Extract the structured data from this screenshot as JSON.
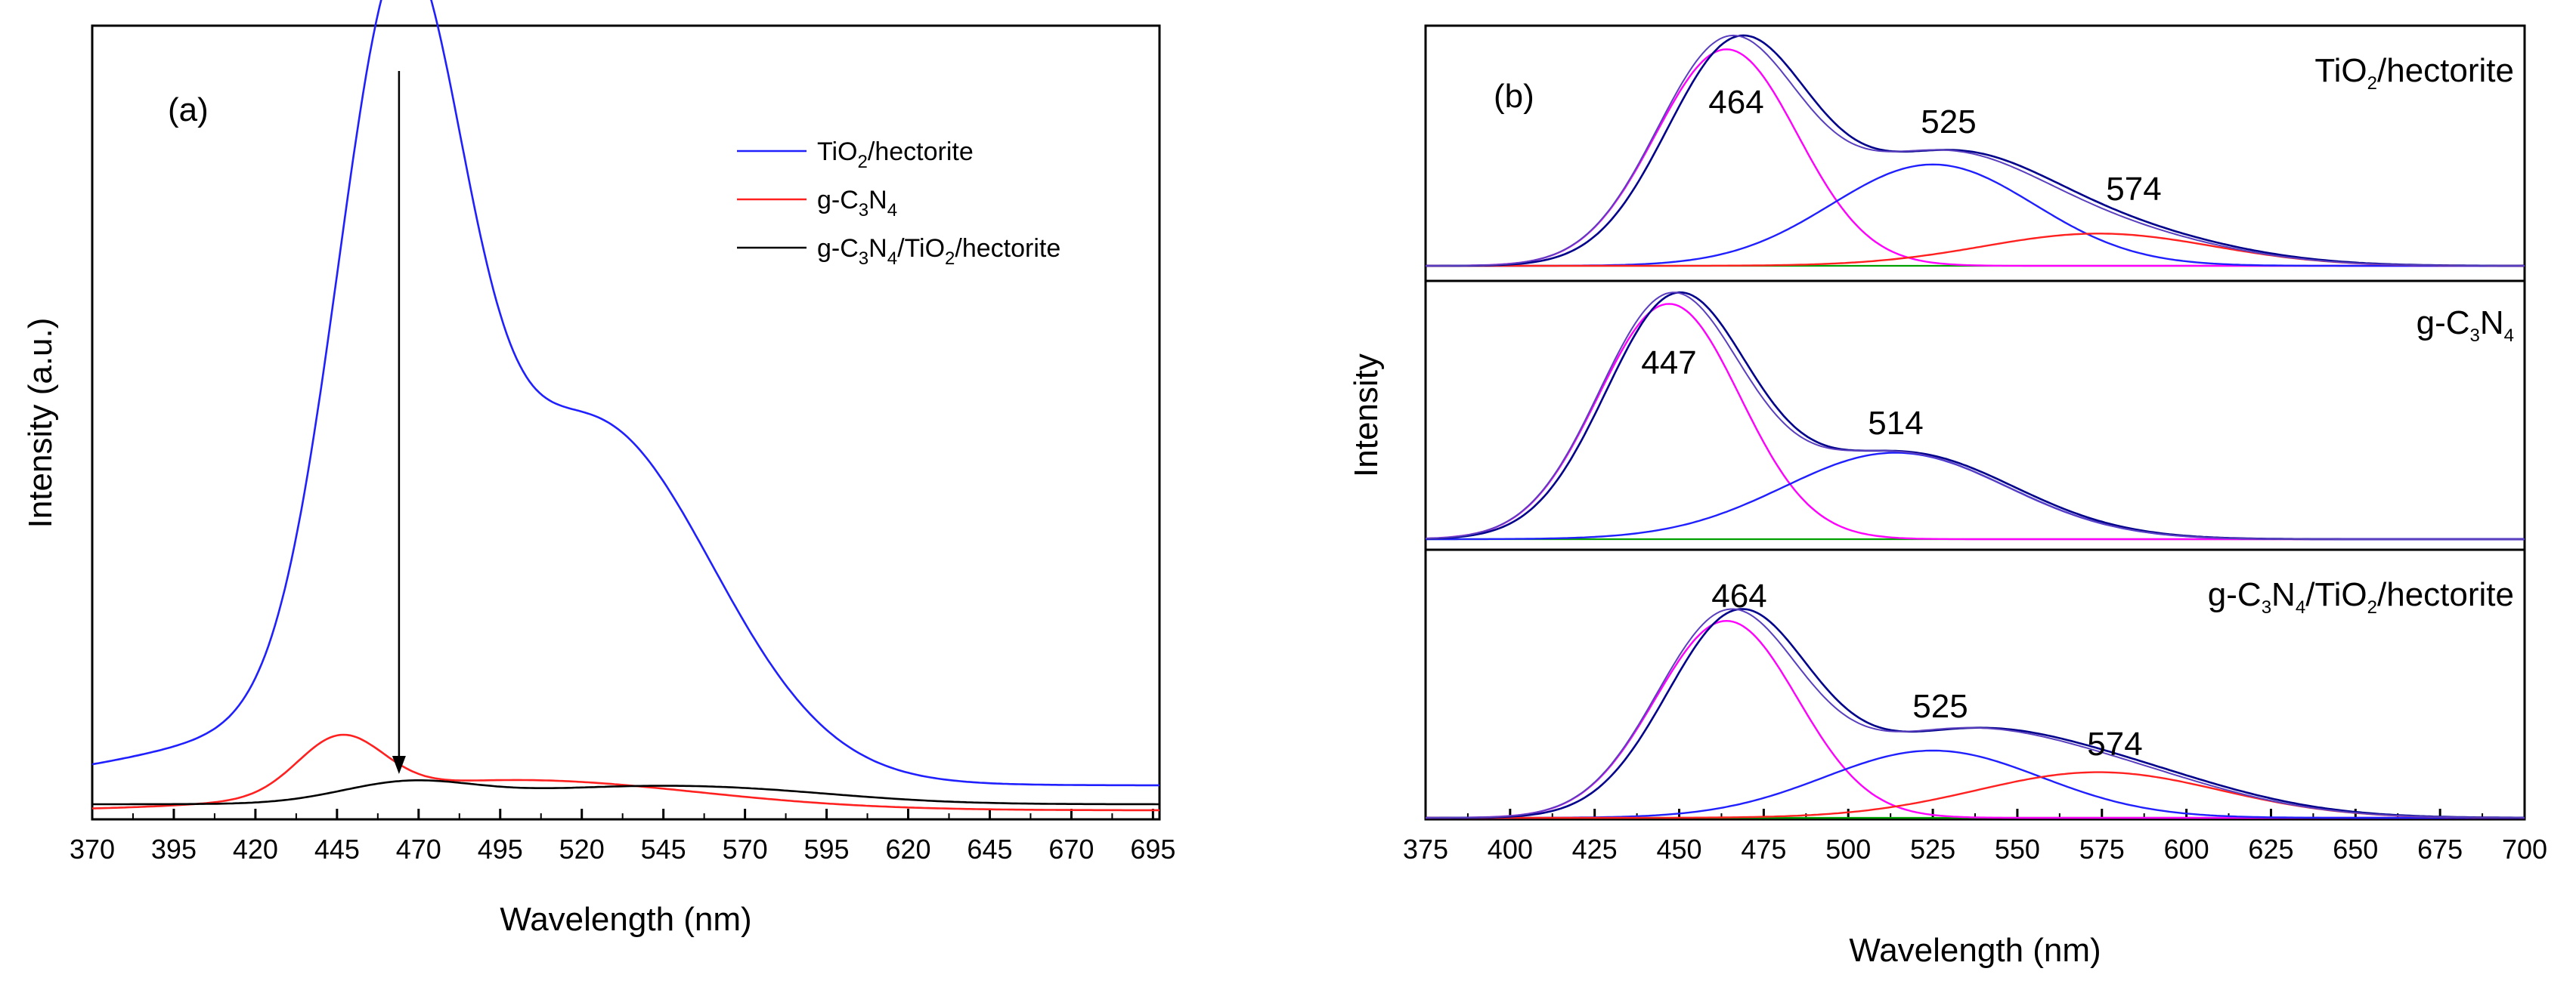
{
  "chart_data": [
    {
      "type": "line",
      "panel": "(a)",
      "xlabel": "Wavelength (nm)",
      "ylabel": "Intensity (a.u.)",
      "xlim": [
        370,
        697
      ],
      "ylim": [
        0,
        1.05
      ],
      "xticks": [
        370,
        395,
        420,
        445,
        470,
        495,
        520,
        545,
        570,
        595,
        620,
        645,
        670,
        695
      ],
      "legend_position": "top-right",
      "series": [
        {
          "key": "tio2",
          "name": "TiO2/hectorite",
          "label_parts": [
            "TiO",
            "2",
            "/hectorite"
          ],
          "color": "#2020ff",
          "components": [
            {
              "center": 464,
              "height": 0.9,
              "sigma": 19
            },
            {
              "center": 525,
              "height": 0.42,
              "sigma": 36
            },
            {
              "center": 466,
              "height": 0.1,
              "sigma": 60
            }
          ],
          "baseline": 0.045
        },
        {
          "key": "gcn",
          "name": "g-C3N4",
          "label_parts": [
            "g-C",
            "3",
            "N",
            "4"
          ],
          "color": "#ff2020",
          "components": [
            {
              "center": 446,
              "height": 0.075,
              "sigma": 13
            },
            {
              "center": 500,
              "height": 0.04,
              "sigma": 55
            }
          ],
          "baseline": 0.012
        },
        {
          "key": "comp",
          "name": "g-C3N4/TiO2/hectorite",
          "label_parts": [
            "g-C",
            "3",
            "N",
            "4",
            "/TiO",
            "2",
            "/hectorite"
          ],
          "color": "#000000",
          "components": [
            {
              "center": 466,
              "height": 0.025,
              "sigma": 20
            },
            {
              "center": 525,
              "height": 0.018,
              "sigma": 40
            },
            {
              "center": 574,
              "height": 0.012,
              "sigma": 35
            }
          ],
          "baseline": 0.02
        }
      ],
      "arrow": {
        "x": 464,
        "from_y": 0.99,
        "to_y": 0.06
      }
    },
    {
      "type": "line",
      "panel": "(b)",
      "xlabel": "Wavelength (nm)",
      "ylabel": "Intensity",
      "xlim": [
        375,
        700
      ],
      "xticks": [
        375,
        400,
        425,
        450,
        475,
        500,
        525,
        550,
        575,
        600,
        625,
        650,
        675,
        700
      ],
      "subplots": [
        {
          "sample": "TiO2/hectorite",
          "label_parts": [
            "TiO",
            "2",
            "/hectorite"
          ],
          "peaks": [
            {
              "center": 464,
              "height": 0.94,
              "sigma": 21,
              "color": "#ff00ff",
              "label": "464"
            },
            {
              "center": 525,
              "height": 0.44,
              "sigma": 30,
              "color": "#2020ff",
              "label": "525"
            },
            {
              "center": 574,
              "height": 0.14,
              "sigma": 34,
              "color": "#ff2020",
              "label": "574"
            }
          ],
          "shift": 3,
          "baseline_color": "#00a000",
          "envelope_color": "#00008b"
        },
        {
          "sample": "g-C3N4",
          "label_parts": [
            "g-C",
            "3",
            "N",
            "4"
          ],
          "peaks": [
            {
              "center": 447,
              "height": 0.98,
              "sigma": 21,
              "color": "#ff00ff",
              "label": "447"
            },
            {
              "center": 514,
              "height": 0.36,
              "sigma": 33,
              "color": "#2020ff",
              "label": "514"
            }
          ],
          "shift": 2,
          "baseline_color": "#00a000",
          "envelope_color": "#00008b"
        },
        {
          "sample": "g-C3N4/TiO2/hectorite",
          "label_parts": [
            "g-C",
            "3",
            "N",
            "4",
            "/TiO",
            "2",
            "/hectorite"
          ],
          "peaks": [
            {
              "center": 464,
              "height": 0.82,
              "sigma": 21,
              "color": "#ff00ff",
              "label": "464"
            },
            {
              "center": 525,
              "height": 0.28,
              "sigma": 32,
              "color": "#2020ff",
              "label": "525"
            },
            {
              "center": 574,
              "height": 0.19,
              "sigma": 36,
              "color": "#ff2020",
              "label": "574"
            }
          ],
          "shift": 3,
          "baseline_color": "#00a000",
          "envelope_color": "#00008b"
        }
      ]
    }
  ]
}
